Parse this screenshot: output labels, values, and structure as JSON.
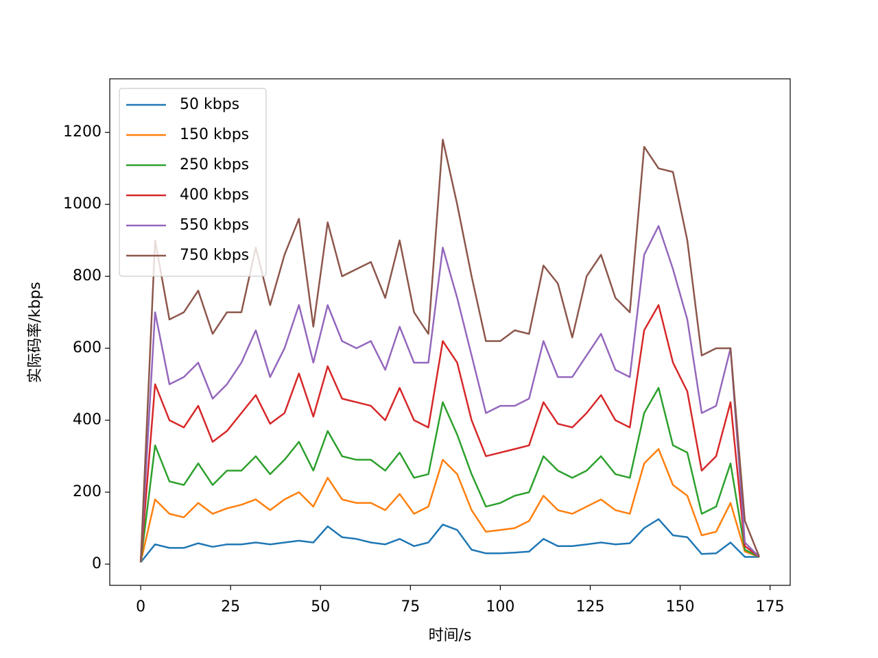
{
  "chart_data": {
    "type": "line",
    "xlabel": "时间/s",
    "ylabel": "实际码率/kbps",
    "x": [
      0,
      4,
      8,
      12,
      16,
      20,
      24,
      28,
      32,
      36,
      40,
      44,
      48,
      52,
      56,
      60,
      64,
      68,
      72,
      76,
      80,
      84,
      88,
      92,
      96,
      100,
      104,
      108,
      112,
      116,
      120,
      124,
      128,
      132,
      136,
      140,
      144,
      148,
      152,
      156,
      160,
      164,
      168,
      172
    ],
    "series": [
      {
        "name": "50 kbps",
        "color": "#1f77b4",
        "values": [
          5,
          55,
          45,
          45,
          58,
          48,
          55,
          55,
          60,
          55,
          60,
          65,
          60,
          105,
          75,
          70,
          60,
          55,
          70,
          50,
          60,
          110,
          95,
          40,
          30,
          30,
          32,
          35,
          70,
          50,
          50,
          55,
          60,
          55,
          58,
          100,
          125,
          80,
          75,
          28,
          30,
          60,
          20,
          20
        ]
      },
      {
        "name": "150 kbps",
        "color": "#ff7f0e",
        "values": [
          5,
          180,
          140,
          130,
          170,
          140,
          155,
          165,
          180,
          150,
          180,
          200,
          160,
          240,
          180,
          170,
          170,
          150,
          195,
          140,
          160,
          290,
          250,
          150,
          90,
          95,
          100,
          120,
          190,
          150,
          140,
          160,
          180,
          150,
          140,
          280,
          320,
          220,
          190,
          80,
          90,
          170,
          35,
          20
        ]
      },
      {
        "name": "250 kbps",
        "color": "#2ca02c",
        "values": [
          5,
          330,
          230,
          220,
          280,
          220,
          260,
          260,
          300,
          250,
          290,
          340,
          260,
          370,
          300,
          290,
          290,
          260,
          310,
          240,
          250,
          450,
          360,
          250,
          160,
          170,
          190,
          200,
          300,
          260,
          240,
          260,
          300,
          250,
          240,
          420,
          490,
          330,
          310,
          140,
          160,
          280,
          40,
          20
        ]
      },
      {
        "name": "400 kbps",
        "color": "#d62728",
        "values": [
          5,
          500,
          400,
          380,
          440,
          340,
          370,
          420,
          470,
          390,
          420,
          530,
          410,
          550,
          460,
          450,
          440,
          400,
          490,
          400,
          380,
          620,
          560,
          400,
          300,
          310,
          320,
          330,
          450,
          390,
          380,
          420,
          470,
          400,
          380,
          650,
          720,
          560,
          480,
          260,
          300,
          450,
          50,
          20
        ]
      },
      {
        "name": "550 kbps",
        "color": "#9467bd",
        "values": [
          5,
          700,
          500,
          520,
          560,
          460,
          500,
          560,
          650,
          520,
          600,
          720,
          560,
          720,
          620,
          600,
          620,
          540,
          660,
          560,
          560,
          880,
          740,
          580,
          420,
          440,
          440,
          460,
          620,
          520,
          520,
          580,
          640,
          540,
          520,
          860,
          940,
          820,
          680,
          420,
          440,
          600,
          60,
          20
        ]
      },
      {
        "name": "750 kbps",
        "color": "#8c564b",
        "values": [
          5,
          900,
          680,
          700,
          760,
          640,
          700,
          700,
          880,
          720,
          860,
          960,
          660,
          950,
          800,
          820,
          840,
          740,
          900,
          700,
          640,
          1180,
          1000,
          800,
          620,
          620,
          650,
          640,
          830,
          780,
          630,
          800,
          860,
          740,
          700,
          1160,
          1100,
          1090,
          900,
          580,
          600,
          600,
          120,
          20
        ]
      }
    ],
    "xlim": [
      -8.6,
      180.6
    ],
    "ylim": [
      -59,
      1349
    ],
    "xticks": [
      0,
      25,
      50,
      75,
      100,
      125,
      150,
      175
    ],
    "yticks": [
      0,
      200,
      400,
      600,
      800,
      1000,
      1200
    ],
    "legend": "upper left"
  }
}
